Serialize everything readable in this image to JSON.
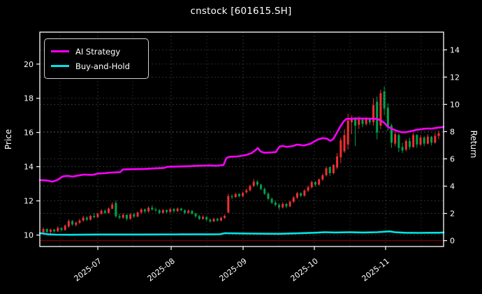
{
  "title": "cnstock [601615.SH]",
  "legend": [
    {
      "label": "AI Strategy",
      "color": "#ff00ff"
    },
    {
      "label": "Buy-and-Hold",
      "color": "#00e5e6"
    }
  ],
  "colors": {
    "background": "#000000",
    "text": "#ffffff",
    "spine": "#ffffff",
    "grid": "#3a3a3a",
    "grid_minor": "#2c2c2c",
    "up_candle": "#f03030",
    "down_candle": "#00a24a",
    "ai_strategy_line": "#ff00ff",
    "buy_and_hold_line": "#00e5e6",
    "zero_return_line": "#8b0000"
  },
  "chart_data": {
    "type": "candlestick",
    "title": "cnstock [601615.SH]",
    "grid": true,
    "legend_position": "upper left",
    "x_axis": {
      "ticks": [
        {
          "label": "2025-07",
          "pos": 0.1436
        },
        {
          "label": "2025-08",
          "pos": 0.3253
        },
        {
          "label": "2025-09",
          "pos": 0.5035
        },
        {
          "label": "2025-10",
          "pos": 0.6799
        },
        {
          "label": "2025-11",
          "pos": 0.8564
        }
      ],
      "minor_pos": [
        0.0502,
        0.2301,
        0.4135,
        0.5917,
        0.7682,
        0.9446
      ],
      "label_rotation_deg": -38
    },
    "price_axis": {
      "label": "Price",
      "side": "left",
      "ticks": [
        10,
        12,
        14,
        16,
        18,
        20
      ],
      "range": [
        9.33,
        21.87
      ]
    },
    "return_axis": {
      "label": "Return",
      "side": "right",
      "ticks": [
        0,
        2,
        4,
        6,
        8,
        10,
        12,
        14
      ],
      "range": [
        -0.43,
        15.3
      ],
      "zero_line": 0
    },
    "candles_note": "OHLC, red = up day, green = down day; evenly spaced mid-Jun to mid-Nov 2025",
    "candles_ohlc": [
      [
        10.15,
        10.45,
        10.05,
        10.35
      ],
      [
        10.35,
        10.4,
        10.12,
        10.18
      ],
      [
        10.18,
        10.38,
        10.1,
        10.32
      ],
      [
        10.32,
        10.36,
        10.15,
        10.22
      ],
      [
        10.22,
        10.52,
        10.18,
        10.42
      ],
      [
        10.4,
        10.48,
        10.22,
        10.3
      ],
      [
        10.3,
        10.62,
        10.25,
        10.55
      ],
      [
        10.5,
        10.92,
        10.42,
        10.82
      ],
      [
        10.82,
        10.88,
        10.55,
        10.62
      ],
      [
        10.6,
        10.8,
        10.5,
        10.72
      ],
      [
        10.72,
        10.95,
        10.65,
        10.85
      ],
      [
        10.85,
        11.12,
        10.78,
        11.02
      ],
      [
        11.02,
        11.1,
        10.82,
        10.9
      ],
      [
        10.9,
        11.18,
        10.85,
        11.12
      ],
      [
        11.12,
        11.3,
        10.98,
        11.05
      ],
      [
        11.05,
        11.32,
        11.0,
        11.25
      ],
      [
        11.25,
        11.52,
        11.18,
        11.42
      ],
      [
        11.42,
        11.5,
        11.22,
        11.3
      ],
      [
        11.3,
        11.62,
        11.25,
        11.55
      ],
      [
        11.55,
        11.92,
        11.5,
        11.78
      ],
      [
        11.88,
        12.02,
        11.02,
        11.1
      ],
      [
        11.1,
        11.25,
        10.92,
        11.02
      ],
      [
        11.02,
        11.28,
        10.95,
        11.18
      ],
      [
        11.18,
        11.22,
        10.85,
        10.95
      ],
      [
        10.95,
        11.28,
        10.9,
        11.22
      ],
      [
        11.22,
        11.3,
        11.0,
        11.08
      ],
      [
        11.08,
        11.38,
        11.05,
        11.32
      ],
      [
        11.32,
        11.58,
        11.25,
        11.5
      ],
      [
        11.5,
        11.56,
        11.3,
        11.38
      ],
      [
        11.38,
        11.68,
        11.32,
        11.6
      ],
      [
        11.6,
        11.75,
        11.42,
        11.5
      ],
      [
        11.5,
        11.6,
        11.35,
        11.45
      ],
      [
        11.45,
        11.52,
        11.22,
        11.3
      ],
      [
        11.3,
        11.52,
        11.25,
        11.46
      ],
      [
        11.46,
        11.5,
        11.28,
        11.35
      ],
      [
        11.35,
        11.58,
        11.3,
        11.52
      ],
      [
        11.52,
        11.58,
        11.32,
        11.4
      ],
      [
        11.4,
        11.62,
        11.35,
        11.55
      ],
      [
        11.55,
        11.6,
        11.38,
        11.45
      ],
      [
        11.45,
        11.5,
        11.22,
        11.3
      ],
      [
        11.3,
        11.5,
        11.25,
        11.42
      ],
      [
        11.42,
        11.46,
        11.18,
        11.25
      ],
      [
        11.25,
        11.32,
        11.02,
        11.1
      ],
      [
        11.1,
        11.18,
        10.88,
        10.95
      ],
      [
        10.95,
        11.15,
        10.9,
        11.06
      ],
      [
        11.06,
        11.1,
        10.82,
        10.9
      ],
      [
        10.9,
        10.98,
        10.72,
        10.8
      ],
      [
        10.8,
        11.02,
        10.75,
        10.95
      ],
      [
        10.95,
        11.0,
        10.78,
        10.85
      ],
      [
        10.85,
        11.08,
        10.8,
        11.0
      ],
      [
        11.0,
        11.2,
        10.95,
        11.12
      ],
      [
        11.32,
        12.42,
        11.28,
        12.28
      ],
      [
        12.28,
        12.38,
        12.1,
        12.22
      ],
      [
        12.22,
        12.48,
        12.18,
        12.4
      ],
      [
        12.4,
        12.45,
        12.2,
        12.28
      ],
      [
        12.28,
        12.55,
        12.22,
        12.46
      ],
      [
        12.5,
        12.72,
        12.42,
        12.62
      ],
      [
        12.62,
        12.95,
        12.55,
        12.88
      ],
      [
        12.88,
        13.28,
        12.8,
        13.12
      ],
      [
        13.12,
        13.2,
        12.85,
        12.95
      ],
      [
        12.95,
        13.0,
        12.62,
        12.7
      ],
      [
        12.7,
        12.78,
        12.35,
        12.42
      ],
      [
        12.42,
        12.5,
        12.05,
        12.12
      ],
      [
        12.12,
        12.2,
        11.82,
        11.9
      ],
      [
        11.9,
        12.02,
        11.68,
        11.76
      ],
      [
        11.76,
        11.85,
        11.48,
        11.62
      ],
      [
        11.62,
        11.92,
        11.55,
        11.82
      ],
      [
        11.82,
        11.88,
        11.58,
        11.68
      ],
      [
        11.68,
        12.02,
        11.62,
        11.95
      ],
      [
        11.95,
        12.28,
        11.88,
        12.2
      ],
      [
        12.2,
        12.52,
        12.12,
        12.45
      ],
      [
        12.45,
        12.5,
        12.22,
        12.3
      ],
      [
        12.3,
        12.68,
        12.25,
        12.6
      ],
      [
        12.6,
        12.9,
        12.52,
        12.8
      ],
      [
        12.8,
        13.18,
        12.72,
        13.1
      ],
      [
        13.1,
        13.15,
        12.85,
        12.95
      ],
      [
        12.95,
        13.32,
        12.9,
        13.25
      ],
      [
        13.25,
        13.6,
        13.18,
        13.5
      ],
      [
        13.5,
        14.0,
        13.42,
        13.9
      ],
      [
        13.98,
        14.0,
        13.45,
        13.62
      ],
      [
        13.62,
        14.15,
        13.55,
        14.1
      ],
      [
        13.95,
        14.8,
        13.85,
        14.6
      ],
      [
        14.55,
        15.7,
        14.2,
        15.55
      ],
      [
        14.9,
        16.2,
        14.8,
        15.85
      ],
      [
        15.3,
        17.1,
        15.0,
        16.7
      ],
      [
        16.6,
        17.0,
        15.9,
        16.8
      ],
      [
        16.8,
        16.9,
        15.2,
        16.4
      ],
      [
        16.45,
        16.95,
        16.2,
        16.75
      ],
      [
        16.75,
        16.85,
        16.3,
        16.5
      ],
      [
        16.5,
        16.9,
        16.4,
        16.78
      ],
      [
        16.78,
        16.85,
        16.45,
        16.6
      ],
      [
        16.6,
        18.0,
        16.4,
        17.6
      ],
      [
        17.8,
        18.1,
        15.6,
        16.0
      ],
      [
        16.4,
        18.5,
        16.2,
        18.3
      ],
      [
        18.4,
        18.7,
        17.0,
        17.4
      ],
      [
        17.45,
        17.7,
        16.1,
        16.3
      ],
      [
        16.4,
        16.5,
        15.1,
        15.4
      ],
      [
        15.35,
        16.1,
        15.2,
        15.9
      ],
      [
        15.85,
        15.95,
        14.85,
        15.1
      ],
      [
        15.15,
        15.4,
        14.8,
        14.95
      ],
      [
        15.0,
        15.6,
        14.9,
        15.5
      ],
      [
        15.5,
        15.7,
        15.0,
        15.15
      ],
      [
        15.15,
        16.0,
        15.1,
        15.85
      ],
      [
        15.85,
        15.9,
        15.1,
        15.3
      ],
      [
        15.3,
        15.85,
        15.2,
        15.7
      ],
      [
        15.7,
        15.8,
        15.2,
        15.35
      ],
      [
        15.35,
        15.9,
        15.3,
        15.75
      ],
      [
        15.75,
        15.8,
        15.25,
        15.4
      ],
      [
        15.4,
        15.95,
        15.35,
        15.8
      ],
      [
        15.8,
        16.1,
        15.6,
        15.95
      ]
    ],
    "candle_span": [
      0.0087,
      0.9879
    ],
    "series": [
      {
        "name": "AI Strategy",
        "axis": "return",
        "color": "#ff00ff",
        "width": 2.6,
        "points": [
          [
            0.0,
            4.45
          ],
          [
            0.0156,
            4.42
          ],
          [
            0.0311,
            4.33
          ],
          [
            0.0433,
            4.45
          ],
          [
            0.0571,
            4.72
          ],
          [
            0.0692,
            4.75
          ],
          [
            0.0813,
            4.7
          ],
          [
            0.0951,
            4.78
          ],
          [
            0.109,
            4.85
          ],
          [
            0.1298,
            4.82
          ],
          [
            0.1436,
            4.92
          ],
          [
            0.1609,
            4.95
          ],
          [
            0.1782,
            5.0
          ],
          [
            0.199,
            5.02
          ],
          [
            0.2059,
            5.22
          ],
          [
            0.2301,
            5.24
          ],
          [
            0.2595,
            5.26
          ],
          [
            0.282,
            5.3
          ],
          [
            0.308,
            5.34
          ],
          [
            0.3166,
            5.42
          ],
          [
            0.3426,
            5.44
          ],
          [
            0.3685,
            5.47
          ],
          [
            0.3945,
            5.5
          ],
          [
            0.4204,
            5.52
          ],
          [
            0.4377,
            5.5
          ],
          [
            0.455,
            5.55
          ],
          [
            0.4619,
            6.05
          ],
          [
            0.4689,
            6.15
          ],
          [
            0.4896,
            6.18
          ],
          [
            0.5104,
            6.28
          ],
          [
            0.5242,
            6.42
          ],
          [
            0.5346,
            6.65
          ],
          [
            0.5398,
            6.8
          ],
          [
            0.5467,
            6.55
          ],
          [
            0.5554,
            6.45
          ],
          [
            0.5727,
            6.47
          ],
          [
            0.5848,
            6.5
          ],
          [
            0.5934,
            6.9
          ],
          [
            0.6021,
            6.95
          ],
          [
            0.6107,
            6.88
          ],
          [
            0.6194,
            6.92
          ],
          [
            0.628,
            6.95
          ],
          [
            0.6367,
            7.05
          ],
          [
            0.6453,
            7.02
          ],
          [
            0.654,
            6.98
          ],
          [
            0.6626,
            7.05
          ],
          [
            0.6713,
            7.12
          ],
          [
            0.6799,
            7.28
          ],
          [
            0.6886,
            7.42
          ],
          [
            0.7007,
            7.52
          ],
          [
            0.7111,
            7.48
          ],
          [
            0.7197,
            7.32
          ],
          [
            0.7266,
            7.45
          ],
          [
            0.7353,
            7.9
          ],
          [
            0.7439,
            8.35
          ],
          [
            0.7526,
            8.75
          ],
          [
            0.7595,
            8.93
          ],
          [
            0.7751,
            8.95
          ],
          [
            0.7924,
            8.96
          ],
          [
            0.8097,
            8.95
          ],
          [
            0.827,
            8.95
          ],
          [
            0.8356,
            8.93
          ],
          [
            0.8443,
            8.82
          ],
          [
            0.8529,
            8.65
          ],
          [
            0.8599,
            8.42
          ],
          [
            0.8668,
            8.28
          ],
          [
            0.8737,
            8.18
          ],
          [
            0.8806,
            8.1
          ],
          [
            0.8875,
            8.02
          ],
          [
            0.8962,
            7.96
          ],
          [
            0.9048,
            7.95
          ],
          [
            0.9135,
            8.0
          ],
          [
            0.9221,
            8.05
          ],
          [
            0.9308,
            8.12
          ],
          [
            0.9394,
            8.15
          ],
          [
            0.9481,
            8.2
          ],
          [
            0.9602,
            8.23
          ],
          [
            0.9706,
            8.22
          ],
          [
            0.981,
            8.27
          ],
          [
            0.9914,
            8.3
          ],
          [
            1.0,
            8.35
          ]
        ]
      },
      {
        "name": "Buy-and-Hold",
        "axis": "return",
        "color": "#00e5e6",
        "width": 2.6,
        "points": [
          [
            0.0,
            0.55
          ],
          [
            0.0087,
            0.52
          ],
          [
            0.019,
            0.47
          ],
          [
            0.0398,
            0.44
          ],
          [
            0.0744,
            0.43
          ],
          [
            0.1436,
            0.45
          ],
          [
            0.2474,
            0.45
          ],
          [
            0.3512,
            0.46
          ],
          [
            0.4464,
            0.47
          ],
          [
            0.4585,
            0.55
          ],
          [
            0.5242,
            0.52
          ],
          [
            0.5934,
            0.5
          ],
          [
            0.6453,
            0.55
          ],
          [
            0.6799,
            0.58
          ],
          [
            0.7059,
            0.62
          ],
          [
            0.7318,
            0.6
          ],
          [
            0.7664,
            0.62
          ],
          [
            0.801,
            0.6
          ],
          [
            0.8356,
            0.62
          ],
          [
            0.8564,
            0.66
          ],
          [
            0.8668,
            0.68
          ],
          [
            0.8789,
            0.62
          ],
          [
            0.9048,
            0.58
          ],
          [
            0.9394,
            0.57
          ],
          [
            0.9654,
            0.58
          ],
          [
            0.9879,
            0.58
          ],
          [
            1.0,
            0.6
          ]
        ]
      }
    ]
  }
}
